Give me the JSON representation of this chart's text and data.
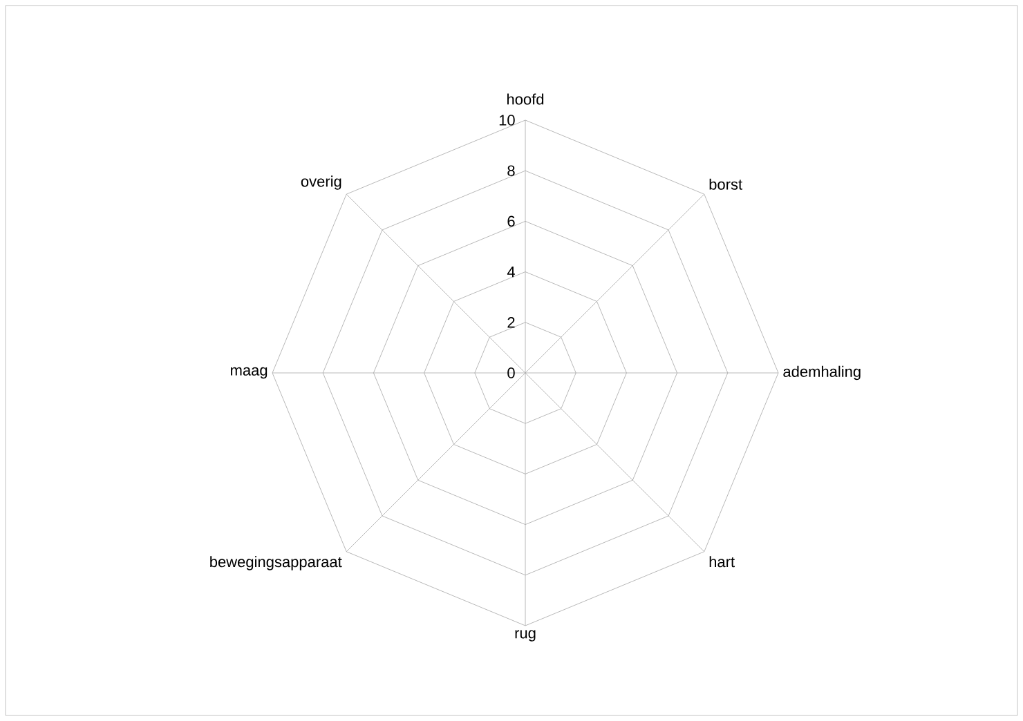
{
  "chart_data": {
    "type": "radar",
    "categories": [
      "hoofd",
      "borst",
      "ademhaling",
      "hart",
      "rug",
      "bewegingsapparaat",
      "maag",
      "overig"
    ],
    "ylim": [
      0,
      10
    ],
    "yticks": [
      0,
      2,
      4,
      6,
      8,
      10
    ],
    "grid": true
  }
}
